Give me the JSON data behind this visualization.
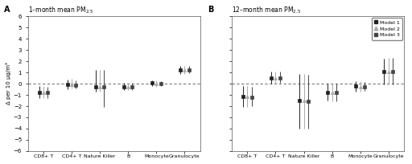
{
  "panel_A_title": "1–month mean PM$_{2.5}$",
  "panel_B_title": "12–month mean PM$_{2.5}$",
  "ylabel": "Δ per 10 μg/m³",
  "categories": [
    "CD8+ T",
    "CD4+ T",
    "Nature Killer",
    "B",
    "Monocyte",
    "Granulocyte"
  ],
  "ylim": [
    -6,
    6
  ],
  "yticks": [
    -6,
    -5,
    -4,
    -3,
    -2,
    -1,
    0,
    1,
    2,
    3,
    4,
    5,
    6
  ],
  "models": [
    "Model 1",
    "Model 2",
    "Model 3"
  ],
  "panel_A": {
    "CD8+ T": {
      "model1": {
        "est": -0.75,
        "lo": -1.3,
        "hi": -0.2
      },
      "model2": {
        "est": -0.75,
        "lo": -1.3,
        "hi": -0.2
      },
      "model3": {
        "est": -0.75,
        "lo": -1.25,
        "hi": -0.25
      }
    },
    "CD4+ T": {
      "model1": {
        "est": -0.1,
        "lo": -0.5,
        "hi": 0.4
      },
      "model2": {
        "est": -0.1,
        "lo": -0.45,
        "hi": 0.45
      },
      "model3": {
        "est": -0.15,
        "lo": -0.45,
        "hi": 0.3
      }
    },
    "Nature Killer": {
      "model1": {
        "est": -0.25,
        "lo": -0.7,
        "hi": 1.2
      },
      "model2": {
        "est": -0.25,
        "lo": -0.7,
        "hi": 1.2
      },
      "model3": {
        "est": -0.3,
        "lo": -2.1,
        "hi": 1.2
      }
    },
    "B": {
      "model1": {
        "est": -0.25,
        "lo": -0.6,
        "hi": 0.1
      },
      "model2": {
        "est": -0.3,
        "lo": -0.6,
        "hi": 0.1
      },
      "model3": {
        "est": -0.3,
        "lo": -0.6,
        "hi": 0.1
      }
    },
    "Monocyte": {
      "model1": {
        "est": 0.05,
        "lo": -0.2,
        "hi": 0.3
      },
      "model2": {
        "est": 0.0,
        "lo": -0.25,
        "hi": 0.3
      },
      "model3": {
        "est": 0.0,
        "lo": -0.2,
        "hi": 0.25
      }
    },
    "Granulocyte": {
      "model1": {
        "est": 1.25,
        "lo": 0.9,
        "hi": 1.6
      },
      "model2": {
        "est": 1.25,
        "lo": 0.9,
        "hi": 1.6
      },
      "model3": {
        "est": 1.25,
        "lo": 0.95,
        "hi": 1.55
      }
    }
  },
  "panel_B": {
    "CD8+ T": {
      "model1": {
        "est": -1.15,
        "lo": -2.1,
        "hi": -0.2
      },
      "model2": {
        "est": -1.15,
        "lo": -2.1,
        "hi": -0.2
      },
      "model3": {
        "est": -1.2,
        "lo": -2.0,
        "hi": -0.3
      }
    },
    "CD4+ T": {
      "model1": {
        "est": 0.5,
        "lo": 0.0,
        "hi": 1.05
      },
      "model2": {
        "est": 0.5,
        "lo": 0.0,
        "hi": 1.05
      },
      "model3": {
        "est": 0.5,
        "lo": 0.05,
        "hi": 1.05
      }
    },
    "Nature Killer": {
      "model1": {
        "est": -1.5,
        "lo": -4.0,
        "hi": 0.9
      },
      "model2": {
        "est": -1.5,
        "lo": -4.0,
        "hi": 0.9
      },
      "model3": {
        "est": -1.6,
        "lo": -4.0,
        "hi": 0.8
      }
    },
    "B": {
      "model1": {
        "est": -0.75,
        "lo": -1.5,
        "hi": 0.0
      },
      "model2": {
        "est": -0.8,
        "lo": -1.6,
        "hi": 0.0
      },
      "model3": {
        "est": -0.8,
        "lo": -1.6,
        "hi": 0.0
      }
    },
    "Monocyte": {
      "model1": {
        "est": -0.2,
        "lo": -0.7,
        "hi": 0.25
      },
      "model2": {
        "est": -0.25,
        "lo": -0.7,
        "hi": 0.2
      },
      "model3": {
        "est": -0.25,
        "lo": -0.65,
        "hi": 0.15
      }
    },
    "Granulocyte": {
      "model1": {
        "est": 1.05,
        "lo": -0.1,
        "hi": 2.2
      },
      "model2": {
        "est": 1.1,
        "lo": -0.1,
        "hi": 2.3
      },
      "model3": {
        "est": 1.1,
        "lo": -0.05,
        "hi": 2.3
      }
    }
  },
  "offsets": [
    -0.15,
    0.0,
    0.15
  ],
  "colors": [
    "#222222",
    "#aaaaaa",
    "#444444"
  ],
  "markers": [
    "s",
    "^",
    "s"
  ],
  "marker_sizes": [
    3.0,
    3.0,
    3.0
  ],
  "background_color": "#ffffff"
}
